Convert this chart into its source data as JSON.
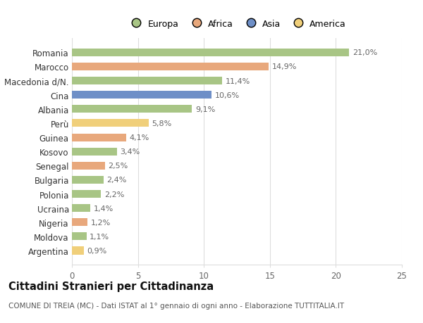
{
  "countries": [
    "Romania",
    "Marocco",
    "Macedonia d/N.",
    "Cina",
    "Albania",
    "Perù",
    "Guinea",
    "Kosovo",
    "Senegal",
    "Bulgaria",
    "Polonia",
    "Ucraina",
    "Nigeria",
    "Moldova",
    "Argentina"
  ],
  "values": [
    21.0,
    14.9,
    11.4,
    10.6,
    9.1,
    5.8,
    4.1,
    3.4,
    2.5,
    2.4,
    2.2,
    1.4,
    1.2,
    1.1,
    0.9
  ],
  "labels": [
    "21,0%",
    "14,9%",
    "11,4%",
    "10,6%",
    "9,1%",
    "5,8%",
    "4,1%",
    "3,4%",
    "2,5%",
    "2,4%",
    "2,2%",
    "1,4%",
    "1,2%",
    "1,1%",
    "0,9%"
  ],
  "colors": [
    "#a8c585",
    "#e8a87c",
    "#a8c585",
    "#6e8fc7",
    "#a8c585",
    "#f0cf7a",
    "#e8a87c",
    "#a8c585",
    "#e8a87c",
    "#a8c585",
    "#a8c585",
    "#a8c585",
    "#e8a87c",
    "#a8c585",
    "#f0cf7a"
  ],
  "legend_labels": [
    "Europa",
    "Africa",
    "Asia",
    "America"
  ],
  "legend_colors": [
    "#a8c585",
    "#e8a87c",
    "#6e8fc7",
    "#f0cf7a"
  ],
  "title": "Cittadini Stranieri per Cittadinanza",
  "subtitle": "COMUNE DI TREIA (MC) - Dati ISTAT al 1° gennaio di ogni anno - Elaborazione TUTTITALIA.IT",
  "xlim": [
    0,
    25
  ],
  "xticks": [
    0,
    5,
    10,
    15,
    20,
    25
  ],
  "background_color": "#ffffff",
  "grid_color": "#dddddd",
  "bar_height": 0.55,
  "label_fontsize": 8.0,
  "ytick_fontsize": 8.5,
  "xtick_fontsize": 8.5,
  "title_fontsize": 10.5,
  "subtitle_fontsize": 7.5,
  "legend_fontsize": 9.0
}
